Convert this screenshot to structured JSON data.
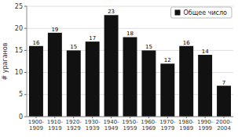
{
  "chart_data": {
    "type": "bar",
    "categories": [
      "1900-\n1909",
      "1910-\n1919",
      "1920-\n1929",
      "1930-\n1939",
      "1940-\n1949",
      "1950-\n1959",
      "1960-\n1969",
      "1970-\n1979",
      "1980-\n1989",
      "1990-\n1999",
      "2000-\n2004"
    ],
    "series": [
      {
        "name": "Общее число",
        "color": "#111111",
        "values": [
          16,
          19,
          15,
          17,
          23,
          18,
          15,
          12,
          16,
          14,
          7
        ]
      }
    ],
    "ylabel": "# ураганов",
    "ylim": [
      0,
      25
    ],
    "yticks": [
      0,
      5,
      10,
      15,
      20,
      25
    ],
    "grid": true,
    "legend": "upper right",
    "data_labels": true
  }
}
